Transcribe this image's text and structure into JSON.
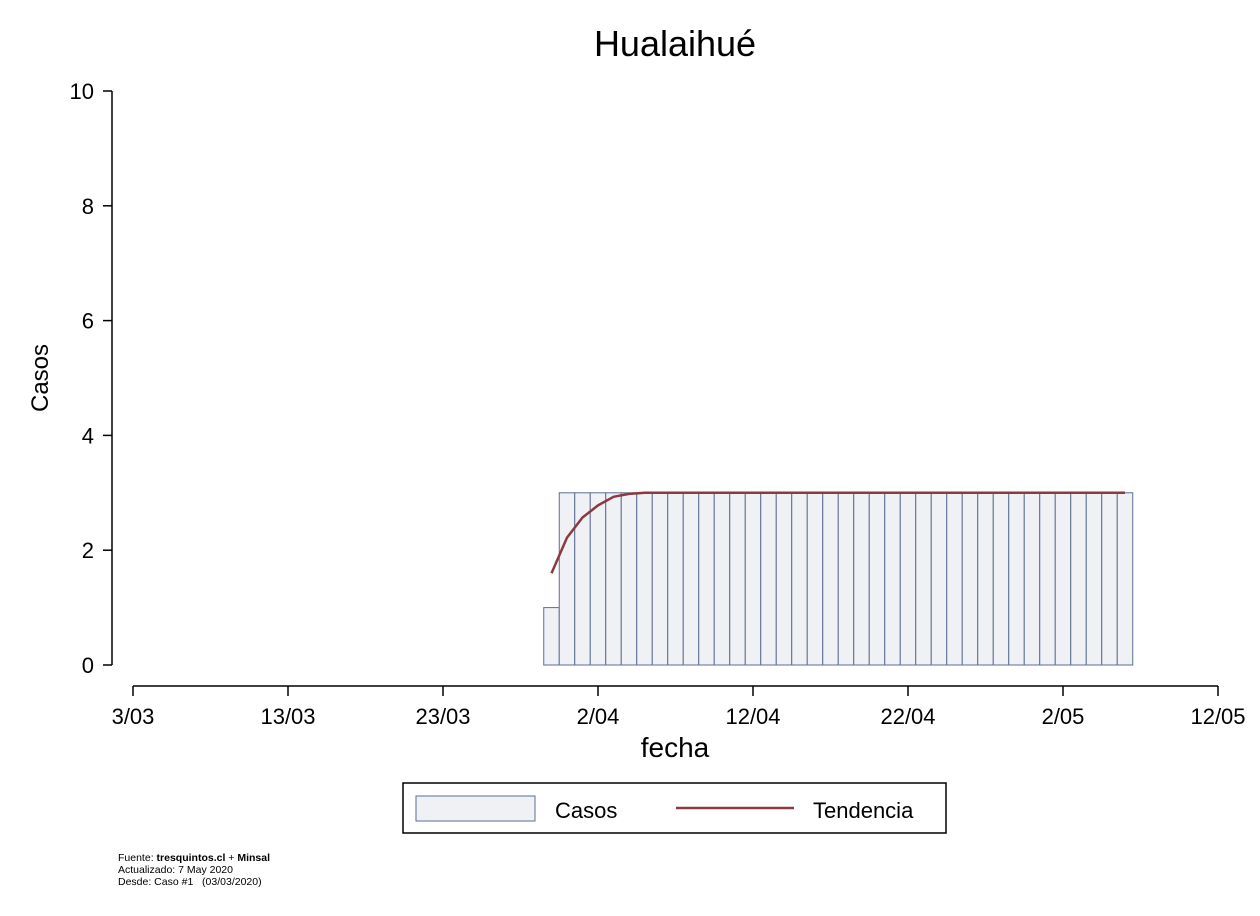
{
  "chart_data": {
    "type": "bar",
    "title": "Hualaihué",
    "xlabel": "fecha",
    "ylabel": "Casos",
    "ylim": [
      0,
      10
    ],
    "yticks": [
      0,
      2,
      4,
      6,
      8,
      10
    ],
    "xlim": [
      "2020-03-03",
      "2020-05-12"
    ],
    "xticks": [
      {
        "date": "2020-03-03",
        "label": "3/03"
      },
      {
        "date": "2020-03-13",
        "label": "13/03"
      },
      {
        "date": "2020-03-23",
        "label": "23/03"
      },
      {
        "date": "2020-04-02",
        "label": "2/04"
      },
      {
        "date": "2020-04-12",
        "label": "12/04"
      },
      {
        "date": "2020-04-22",
        "label": "22/04"
      },
      {
        "date": "2020-05-02",
        "label": "2/05"
      },
      {
        "date": "2020-05-12",
        "label": "12/05"
      }
    ],
    "grid": false,
    "legend_position": "bottom",
    "series": [
      {
        "name": "Casos",
        "type": "bar",
        "color": "#f0f1f5",
        "edge_color": "#5a6e92",
        "points": [
          {
            "date": "2020-03-30",
            "value": 1
          },
          {
            "date": "2020-03-31",
            "value": 3
          },
          {
            "date": "2020-04-01",
            "value": 3
          },
          {
            "date": "2020-04-02",
            "value": 3
          },
          {
            "date": "2020-04-03",
            "value": 3
          },
          {
            "date": "2020-04-04",
            "value": 3
          },
          {
            "date": "2020-04-05",
            "value": 3
          },
          {
            "date": "2020-04-06",
            "value": 3
          },
          {
            "date": "2020-04-07",
            "value": 3
          },
          {
            "date": "2020-04-08",
            "value": 3
          },
          {
            "date": "2020-04-09",
            "value": 3
          },
          {
            "date": "2020-04-10",
            "value": 3
          },
          {
            "date": "2020-04-11",
            "value": 3
          },
          {
            "date": "2020-04-12",
            "value": 3
          },
          {
            "date": "2020-04-13",
            "value": 3
          },
          {
            "date": "2020-04-14",
            "value": 3
          },
          {
            "date": "2020-04-15",
            "value": 3
          },
          {
            "date": "2020-04-16",
            "value": 3
          },
          {
            "date": "2020-04-17",
            "value": 3
          },
          {
            "date": "2020-04-18",
            "value": 3
          },
          {
            "date": "2020-04-19",
            "value": 3
          },
          {
            "date": "2020-04-20",
            "value": 3
          },
          {
            "date": "2020-04-21",
            "value": 3
          },
          {
            "date": "2020-04-22",
            "value": 3
          },
          {
            "date": "2020-04-23",
            "value": 3
          },
          {
            "date": "2020-04-24",
            "value": 3
          },
          {
            "date": "2020-04-25",
            "value": 3
          },
          {
            "date": "2020-04-26",
            "value": 3
          },
          {
            "date": "2020-04-27",
            "value": 3
          },
          {
            "date": "2020-04-28",
            "value": 3
          },
          {
            "date": "2020-04-29",
            "value": 3
          },
          {
            "date": "2020-04-30",
            "value": 3
          },
          {
            "date": "2020-05-01",
            "value": 3
          },
          {
            "date": "2020-05-02",
            "value": 3
          },
          {
            "date": "2020-05-03",
            "value": 3
          },
          {
            "date": "2020-05-04",
            "value": 3
          },
          {
            "date": "2020-05-05",
            "value": 3
          },
          {
            "date": "2020-05-06",
            "value": 3
          }
        ]
      },
      {
        "name": "Tendencia",
        "type": "line",
        "color": "#8b3a3f",
        "points": [
          {
            "date": "2020-03-30",
            "value": 1.6
          },
          {
            "date": "2020-03-31",
            "value": 2.22
          },
          {
            "date": "2020-04-01",
            "value": 2.57
          },
          {
            "date": "2020-04-02",
            "value": 2.78
          },
          {
            "date": "2020-04-03",
            "value": 2.93
          },
          {
            "date": "2020-04-04",
            "value": 2.98
          },
          {
            "date": "2020-04-05",
            "value": 3
          },
          {
            "date": "2020-04-10",
            "value": 3
          },
          {
            "date": "2020-04-20",
            "value": 3
          },
          {
            "date": "2020-04-30",
            "value": 3
          },
          {
            "date": "2020-05-06",
            "value": 3
          }
        ]
      }
    ]
  },
  "footer": {
    "source_prefix": "Fuente: ",
    "source_site": "tresquintos.cl",
    "source_plus": " + ",
    "source_org": "Minsal",
    "updated": "Actualizado: 7 May 2020",
    "since": "Desde: Caso #1   (03/03/2020)"
  }
}
